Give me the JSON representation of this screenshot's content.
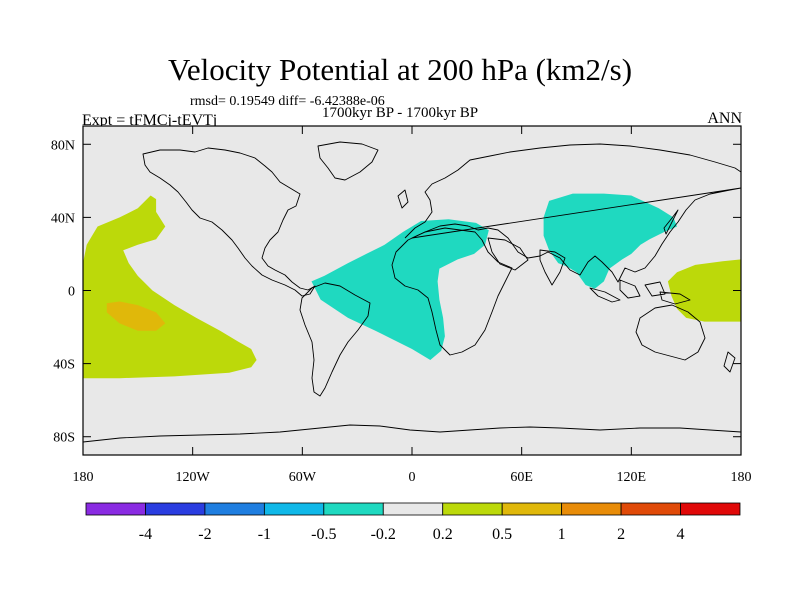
{
  "header": {
    "title": "Velocity Potential at 200 hPa (km2/s)",
    "rmsd_text": "rmsd= 0.19549 diff= -6.42388e-06",
    "period": "1700kyr BP - 1700kyr BP",
    "experiment": "Expt = tFMCj-tEVTj",
    "season": "ANN"
  },
  "chart_data": {
    "type": "heatmap",
    "title": "Velocity Potential at 200 hPa (km2/s)",
    "xlabel": "",
    "ylabel": "",
    "x_ticks": [
      {
        "value": -180,
        "label": "180"
      },
      {
        "value": -120,
        "label": "120W"
      },
      {
        "value": -60,
        "label": "60W"
      },
      {
        "value": 0,
        "label": "0"
      },
      {
        "value": 60,
        "label": "60E"
      },
      {
        "value": 120,
        "label": "120E"
      },
      {
        "value": 180,
        "label": "180"
      }
    ],
    "y_ticks": [
      {
        "value": 80,
        "label": "80N"
      },
      {
        "value": 40,
        "label": "40N"
      },
      {
        "value": 0,
        "label": "0"
      },
      {
        "value": -40,
        "label": "40S"
      },
      {
        "value": -80,
        "label": "80S"
      }
    ],
    "xlim": [
      -180,
      180
    ],
    "ylim": [
      -90,
      90
    ],
    "colorbar": {
      "colors": [
        "#8a2be2",
        "#2a3de0",
        "#1f7ee0",
        "#10b8e8",
        "#1fd9c0",
        "#e8e8e8",
        "#bcd90a",
        "#e0b80a",
        "#e88c08",
        "#e04a08",
        "#e00808"
      ],
      "labels": [
        "-4",
        "-2",
        "-1",
        "-0.5",
        "-0.2",
        "0.2",
        "0.5",
        "1",
        "2",
        "4"
      ],
      "label_color": "#000000"
    },
    "regions": [
      {
        "name": "east-pacific-positive",
        "level": "0.2 to 0.5",
        "color": "#bcd90a",
        "outline": [
          [
            -180,
            15
          ],
          [
            -178,
            25
          ],
          [
            -172,
            35
          ],
          [
            -160,
            40
          ],
          [
            -150,
            45
          ],
          [
            -143,
            52
          ],
          [
            -140,
            50
          ],
          [
            -140,
            43
          ],
          [
            -135,
            35
          ],
          [
            -140,
            28
          ],
          [
            -150,
            25
          ],
          [
            -158,
            22
          ],
          [
            -155,
            15
          ],
          [
            -150,
            8
          ],
          [
            -142,
            0
          ],
          [
            -130,
            -8
          ],
          [
            -118,
            -15
          ],
          [
            -105,
            -22
          ],
          [
            -95,
            -28
          ],
          [
            -88,
            -32
          ],
          [
            -85,
            -38
          ],
          [
            -88,
            -42
          ],
          [
            -100,
            -45
          ],
          [
            -130,
            -47
          ],
          [
            -160,
            -48
          ],
          [
            -180,
            -48
          ]
        ]
      },
      {
        "name": "east-pacific-core",
        "level": "0.5 to 1",
        "color": "#e0b80a",
        "outline": [
          [
            -167,
            -7
          ],
          [
            -160,
            -6
          ],
          [
            -150,
            -8
          ],
          [
            -140,
            -12
          ],
          [
            -135,
            -18
          ],
          [
            -140,
            -22
          ],
          [
            -150,
            -22
          ],
          [
            -160,
            -18
          ],
          [
            -167,
            -12
          ]
        ]
      },
      {
        "name": "west-pacific-positive",
        "level": "0.2 to 0.5",
        "color": "#bcd90a",
        "outline": [
          [
            142,
            -3
          ],
          [
            140,
            5
          ],
          [
            145,
            10
          ],
          [
            155,
            14
          ],
          [
            170,
            16
          ],
          [
            180,
            17
          ],
          [
            180,
            -17
          ],
          [
            160,
            -17
          ],
          [
            150,
            -15
          ],
          [
            145,
            -10
          ]
        ]
      },
      {
        "name": "atlantic-africa-negative",
        "level": "-0.5 to -0.2",
        "color": "#1fd9c0",
        "outline": [
          [
            -55,
            5
          ],
          [
            -48,
            8
          ],
          [
            -35,
            15
          ],
          [
            -25,
            20
          ],
          [
            -15,
            25
          ],
          [
            -5,
            32
          ],
          [
            5,
            38
          ],
          [
            20,
            39
          ],
          [
            35,
            37
          ],
          [
            42,
            33
          ],
          [
            40,
            25
          ],
          [
            34,
            20
          ],
          [
            25,
            17
          ],
          [
            15,
            12
          ],
          [
            14,
            5
          ],
          [
            15,
            -5
          ],
          [
            17,
            -15
          ],
          [
            18,
            -25
          ],
          [
            16,
            -33
          ],
          [
            10,
            -38
          ],
          [
            0,
            -32
          ],
          [
            -10,
            -27
          ],
          [
            -20,
            -22
          ],
          [
            -35,
            -15
          ],
          [
            -50,
            -5
          ]
        ]
      },
      {
        "name": "asia-negative",
        "level": "-0.5 to -0.2",
        "color": "#1fd9c0",
        "outline": [
          [
            75,
            49
          ],
          [
            88,
            53
          ],
          [
            105,
            53
          ],
          [
            120,
            52
          ],
          [
            135,
            45
          ],
          [
            143,
            40
          ],
          [
            145,
            35
          ],
          [
            138,
            32
          ],
          [
            130,
            28
          ],
          [
            125,
            25
          ],
          [
            120,
            20
          ],
          [
            115,
            17
          ],
          [
            108,
            12
          ],
          [
            105,
            5
          ],
          [
            100,
            1
          ],
          [
            95,
            3
          ],
          [
            90,
            10
          ],
          [
            85,
            13
          ],
          [
            80,
            15
          ],
          [
            75,
            22
          ],
          [
            72,
            30
          ],
          [
            72,
            40
          ]
        ]
      }
    ],
    "legend": "bottom"
  }
}
